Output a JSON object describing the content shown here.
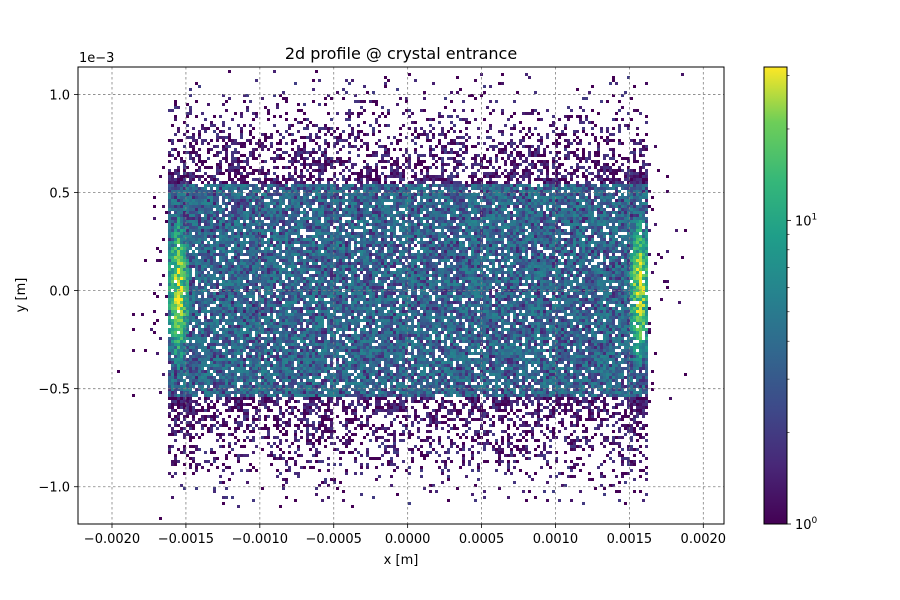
{
  "chart_data": {
    "type": "heatmap",
    "title": "2d profile @ crystal entrance",
    "xlabel": "x [m]",
    "ylabel": "y [m]",
    "xlim": [
      -0.00223,
      0.00214
    ],
    "ylim": [
      -0.00119,
      0.00114
    ],
    "x_ticks": [
      -0.002,
      -0.0015,
      -0.001,
      -0.0005,
      0.0,
      0.0005,
      0.001,
      0.0015,
      0.002
    ],
    "x_tick_labels": [
      "−0.0020",
      "−0.0015",
      "−0.0010",
      "−0.0005",
      "0.0000",
      "0.0005",
      "0.0010",
      "0.0015",
      "0.0020"
    ],
    "y_ticks": [
      -1.0,
      -0.5,
      0.0,
      0.5,
      1.0
    ],
    "y_tick_labels": [
      "−1.0",
      "−0.5",
      "0.0",
      "0.5",
      "1.0"
    ],
    "y_offset_text": "1e−3",
    "grid": true,
    "colormap": "viridis",
    "colorbar": {
      "scale": "log",
      "range": [
        1,
        32
      ],
      "labels": [
        {
          "value": 1,
          "base": "10",
          "exp": "0"
        },
        {
          "value": 10,
          "base": "10",
          "exp": "1"
        }
      ]
    },
    "distribution": {
      "core_x_range": [
        -0.00162,
        0.00162
      ],
      "core_y_range": [
        -0.00055,
        0.00055
      ],
      "halo_y_extent": 0.00115,
      "edge_peaks_x": [
        -0.00155,
        0.00157
      ],
      "peak_counts": 30,
      "core_counts": 4
    }
  }
}
